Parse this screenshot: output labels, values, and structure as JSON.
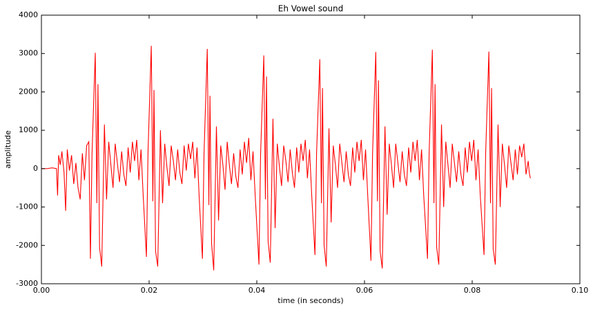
{
  "chart_data": {
    "type": "line",
    "title": "Eh Vowel sound",
    "xlabel": "time (in seconds)",
    "ylabel": "amplitude",
    "xlim": [
      0,
      0.1
    ],
    "ylim": [
      -3000,
      4000
    ],
    "xticks": [
      {
        "value": 0,
        "label": "0.00"
      },
      0.02,
      0.04,
      0.06,
      0.08,
      {
        "value": 0.1,
        "label": "0.10"
      }
    ],
    "yticks": [
      -3000,
      -2000,
      -1000,
      0,
      1000,
      2000,
      3000,
      4000
    ],
    "series": [
      {
        "color": "#ff0000",
        "x": [
          0,
          0.001,
          0.002,
          0.0028,
          0.003,
          0.0032,
          0.0035,
          0.0038,
          0.0042,
          0.0045,
          0.0048,
          0.0052,
          0.0056,
          0.006,
          0.0064,
          0.0068,
          0.0072,
          0.0076,
          0.008,
          0.0084,
          0.0088,
          0.0091,
          0.0094,
          0.01,
          0.0103,
          0.0105,
          0.0108,
          0.0112,
          0.0117,
          0.0121,
          0.0125,
          0.0129,
          0.0133,
          0.0137,
          0.0141,
          0.0145,
          0.0149,
          0.0153,
          0.0157,
          0.0161,
          0.0165,
          0.0169,
          0.0173,
          0.0177,
          0.0181,
          0.0185,
          0.0189,
          0.0195,
          0.0198,
          0.0204,
          0.0207,
          0.0209,
          0.0212,
          0.0216,
          0.0221,
          0.0225,
          0.0229,
          0.0233,
          0.0237,
          0.0241,
          0.0245,
          0.0249,
          0.0253,
          0.0257,
          0.0261,
          0.0265,
          0.0269,
          0.0273,
          0.0277,
          0.0281,
          0.0285,
          0.0289,
          0.0293,
          0.0299,
          0.0302,
          0.0308,
          0.0311,
          0.0313,
          0.0316,
          0.032,
          0.0325,
          0.0329,
          0.0333,
          0.0337,
          0.0341,
          0.0345,
          0.0349,
          0.0353,
          0.0357,
          0.0361,
          0.0365,
          0.0369,
          0.0373,
          0.0377,
          0.0381,
          0.0385,
          0.0389,
          0.0393,
          0.0397,
          0.0404,
          0.0407,
          0.0413,
          0.0416,
          0.0418,
          0.0421,
          0.0425,
          0.043,
          0.0434,
          0.0438,
          0.0442,
          0.0446,
          0.045,
          0.0454,
          0.0458,
          0.0462,
          0.0466,
          0.047,
          0.0474,
          0.0478,
          0.0482,
          0.0486,
          0.049,
          0.0494,
          0.0498,
          0.0502,
          0.0508,
          0.0511,
          0.0517,
          0.052,
          0.0522,
          0.0525,
          0.0529,
          0.0534,
          0.0538,
          0.0542,
          0.0546,
          0.055,
          0.0554,
          0.0558,
          0.0562,
          0.0566,
          0.057,
          0.0574,
          0.0578,
          0.0582,
          0.0586,
          0.059,
          0.0594,
          0.0598,
          0.0602,
          0.0606,
          0.0612,
          0.0615,
          0.0621,
          0.0624,
          0.0626,
          0.0629,
          0.0633,
          0.0638,
          0.0642,
          0.0646,
          0.065,
          0.0654,
          0.0658,
          0.0662,
          0.0666,
          0.067,
          0.0674,
          0.0678,
          0.0682,
          0.0686,
          0.069,
          0.0694,
          0.0698,
          0.0702,
          0.0706,
          0.071,
          0.0717,
          0.072,
          0.0726,
          0.0729,
          0.0731,
          0.0734,
          0.0738,
          0.0743,
          0.0747,
          0.0751,
          0.0755,
          0.0759,
          0.0763,
          0.0767,
          0.0771,
          0.0775,
          0.0779,
          0.0783,
          0.0787,
          0.0791,
          0.0795,
          0.0799,
          0.0803,
          0.0807,
          0.0811,
          0.0815,
          0.0822,
          0.0825,
          0.0831,
          0.0834,
          0.0836,
          0.0839,
          0.0843,
          0.0848,
          0.0852,
          0.0856,
          0.086,
          0.0864,
          0.0868,
          0.0872,
          0.0876,
          0.088,
          0.0884,
          0.0888,
          0.0892,
          0.0896,
          0.09,
          0.0904,
          0.0906,
          0.0908
        ],
        "values": [
          0,
          0,
          20,
          0,
          -700,
          350,
          100,
          450,
          -100,
          -1100,
          500,
          -50,
          350,
          -400,
          150,
          -500,
          -800,
          400,
          -300,
          600,
          700,
          -2350,
          400,
          3020,
          -900,
          2200,
          -2050,
          -2550,
          1150,
          -800,
          700,
          100,
          -500,
          650,
          150,
          -350,
          450,
          -150,
          -450,
          550,
          -100,
          700,
          200,
          750,
          -300,
          500,
          -700,
          -2300,
          450,
          3200,
          -850,
          2050,
          -2150,
          -2550,
          1000,
          -900,
          650,
          50,
          -450,
          600,
          200,
          -300,
          500,
          -100,
          -400,
          600,
          -50,
          650,
          250,
          700,
          -250,
          550,
          -750,
          -2350,
          400,
          3120,
          -950,
          1900,
          -1950,
          -2650,
          1100,
          -1350,
          600,
          100,
          -550,
          700,
          100,
          -400,
          400,
          -200,
          -500,
          500,
          -150,
          700,
          150,
          800,
          -300,
          450,
          -700,
          -2500,
          350,
          2950,
          -800,
          2400,
          -1900,
          -2450,
          1300,
          -1550,
          650,
          50,
          -450,
          600,
          200,
          -350,
          500,
          -100,
          -500,
          550,
          -100,
          650,
          200,
          750,
          -250,
          500,
          -700,
          -2250,
          400,
          2850,
          -900,
          2100,
          -2000,
          -2550,
          1050,
          -1400,
          600,
          100,
          -500,
          650,
          150,
          -350,
          450,
          -150,
          -450,
          550,
          -100,
          700,
          200,
          750,
          -300,
          500,
          -700,
          -2400,
          400,
          3040,
          -850,
          2300,
          -2150,
          -2600,
          1100,
          -1200,
          650,
          100,
          -500,
          650,
          150,
          -350,
          450,
          -150,
          -450,
          550,
          -100,
          700,
          200,
          750,
          -300,
          500,
          -700,
          -2350,
          400,
          3100,
          -900,
          2200,
          -2050,
          -2500,
          1150,
          -1000,
          700,
          100,
          -500,
          650,
          150,
          -350,
          450,
          -150,
          -450,
          550,
          -100,
          700,
          200,
          750,
          -300,
          500,
          -700,
          -2250,
          400,
          3050,
          -900,
          2100,
          -2100,
          -2500,
          1150,
          -1000,
          650,
          100,
          -500,
          600,
          150,
          -300,
          500,
          -150,
          600,
          300,
          650,
          -150,
          200,
          -100,
          -250
        ]
      }
    ]
  }
}
